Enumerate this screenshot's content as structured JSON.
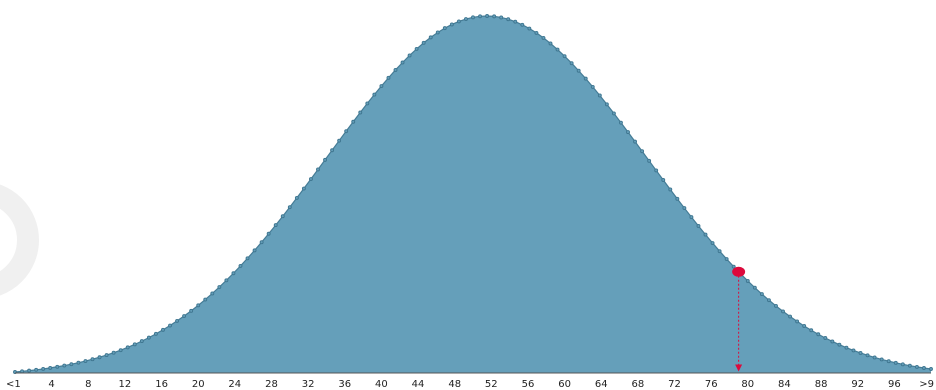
{
  "chart_data": {
    "type": "area",
    "x_ticks": [
      "<1",
      "4",
      "8",
      "12",
      "16",
      "20",
      "24",
      "28",
      "32",
      "36",
      "40",
      "44",
      "48",
      "52",
      "56",
      "60",
      "64",
      "68",
      "72",
      "76",
      "80",
      "84",
      "88",
      "92",
      "96",
      ">9"
    ],
    "xlim": [
      0,
      100
    ],
    "distribution": {
      "shape": "normal",
      "mean": 51.5,
      "sd": 17.5
    },
    "marker": {
      "x": 79,
      "direction": "down-arrow"
    },
    "fill_color": "#659fba",
    "line_color": "#457c96",
    "point_color": "#3f7690",
    "marker_color": "#dc0a3c",
    "watermark_color": "#f0f0f0",
    "axis_color": "#555555",
    "grid": false,
    "legend": "none",
    "title": "",
    "xlabel": "",
    "ylabel": ""
  }
}
